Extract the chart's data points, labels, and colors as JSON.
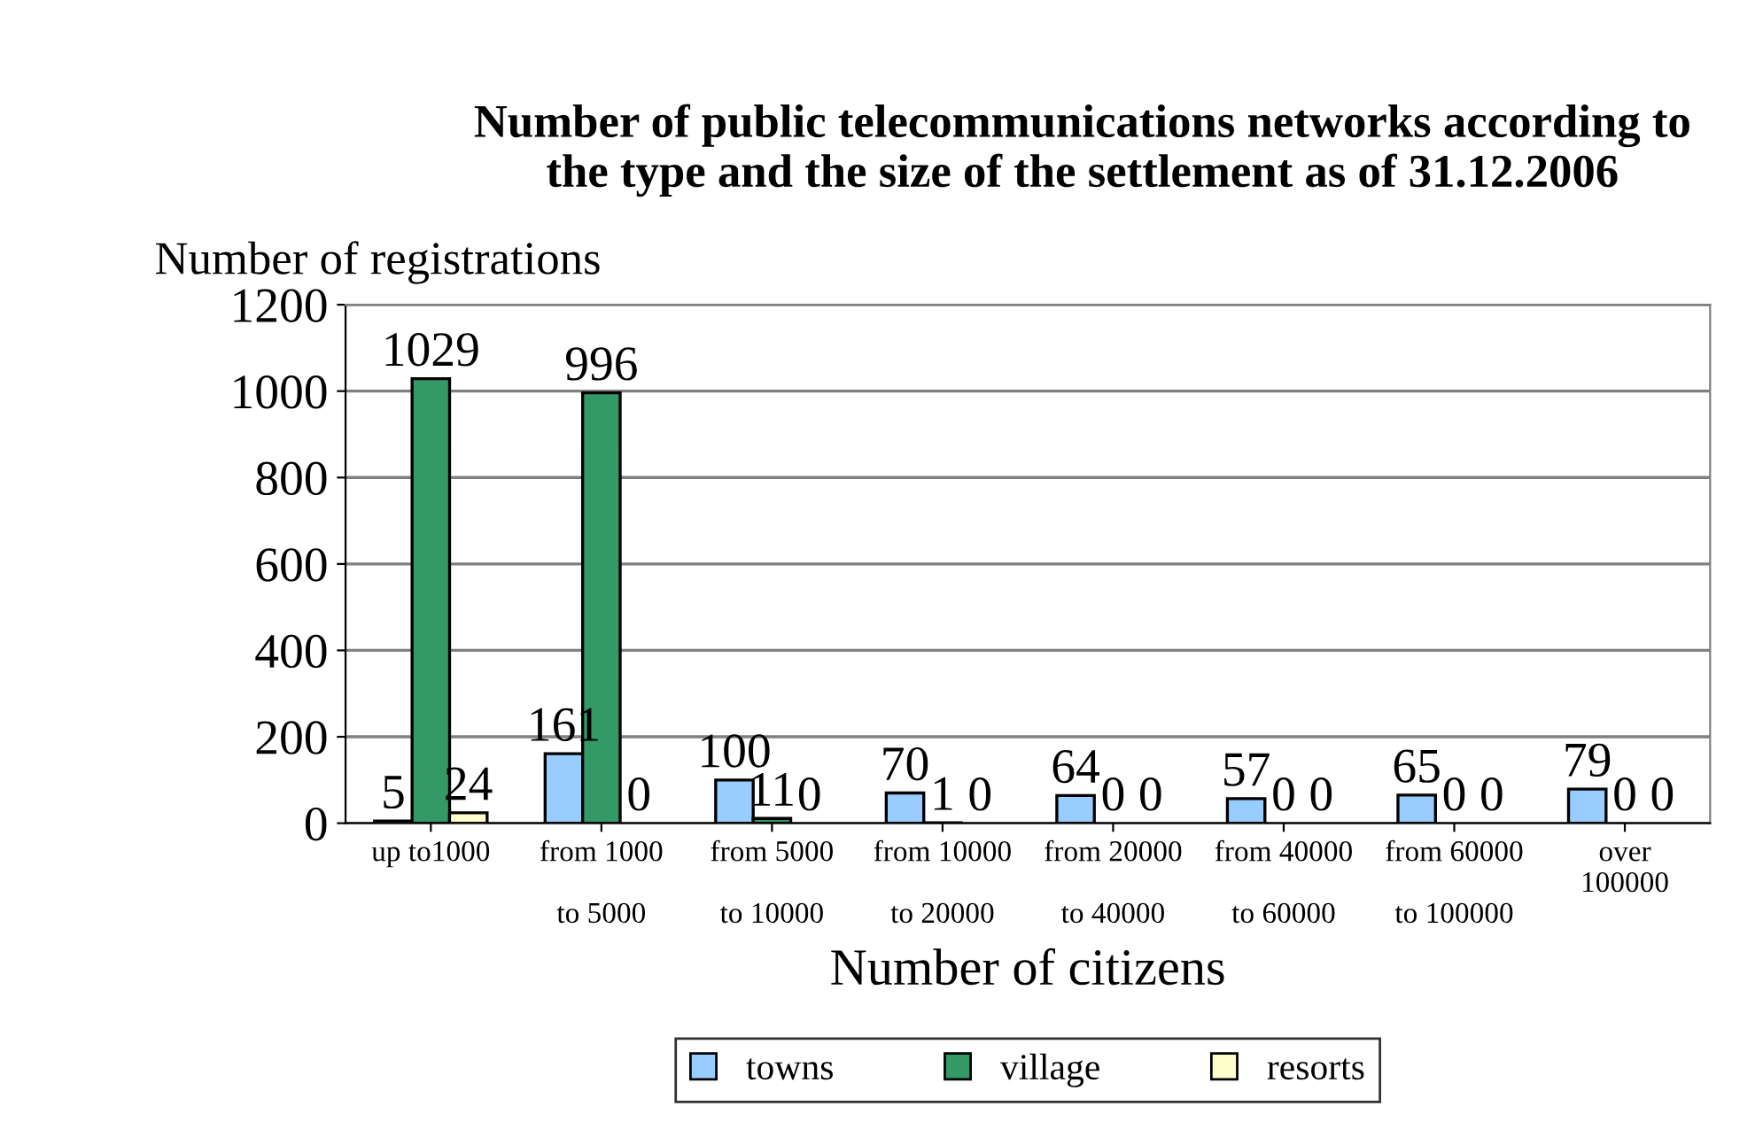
{
  "chart_data": {
    "type": "bar",
    "title": "Number of public telecommunications networks according to\nthe type and the size of the settlement as of 31.12.2006",
    "xlabel": "Number of citizens",
    "ylabel": "Number of registrations",
    "categories": [
      "up to1000",
      "from 1000\n\nto 5000",
      "from 5000\n\nto 10000",
      "from 10000\n\nto 20000",
      "from 20000\n\nto 40000",
      "from 40000\n\nto 60000",
      "from 60000\n\nto 100000",
      "over\n100000"
    ],
    "series": [
      {
        "name": "towns",
        "color": "#99ccff",
        "values": [
          5,
          161,
          100,
          70,
          64,
          57,
          65,
          79
        ]
      },
      {
        "name": "village",
        "color": "#339966",
        "values": [
          1029,
          996,
          11,
          1,
          0,
          0,
          0,
          0
        ]
      },
      {
        "name": "resorts",
        "color": "#ffffcc",
        "values": [
          24,
          0,
          0,
          0,
          0,
          0,
          0,
          0
        ]
      }
    ],
    "ylim": [
      0,
      1200
    ],
    "yticks": [
      0,
      200,
      400,
      600,
      800,
      1000,
      1200
    ],
    "grid": "y",
    "legend": "bottom",
    "data_labels": true
  }
}
